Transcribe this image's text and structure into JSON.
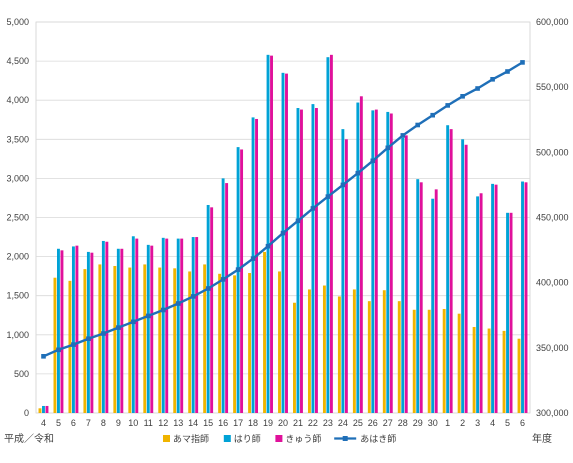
{
  "chart_data": {
    "type": "bar",
    "categories": [
      "4",
      "5",
      "6",
      "7",
      "8",
      "9",
      "10",
      "11",
      "12",
      "13",
      "14",
      "15",
      "16",
      "17",
      "18",
      "19",
      "20",
      "21",
      "22",
      "23",
      "24",
      "25",
      "26",
      "27",
      "28",
      "29",
      "30",
      "1",
      "2",
      "3",
      "4",
      "5",
      "6"
    ],
    "xlabel_left": "平成／令和",
    "xlabel_right": "年度",
    "ylim_left": [
      0,
      5000
    ],
    "yticks_left": [
      0,
      500,
      1000,
      1500,
      2000,
      2500,
      3000,
      3500,
      4000,
      4500,
      5000
    ],
    "ylim_right": [
      300000,
      600000
    ],
    "yticks_right": [
      300000,
      350000,
      400000,
      450000,
      500000,
      550000,
      600000
    ],
    "grid": true,
    "legend_position": "bottom",
    "series": [
      {
        "name": "あマ指師",
        "type": "bar",
        "axis": "left",
        "color": "#F0B400",
        "values": [
          60,
          1730,
          1690,
          1840,
          1900,
          1880,
          1860,
          1900,
          1860,
          1850,
          1810,
          1900,
          1780,
          1760,
          1790,
          2060,
          1810,
          1410,
          1580,
          1630,
          1490,
          1580,
          1430,
          1570,
          1430,
          1320,
          1320,
          1330,
          1270,
          1100,
          1080,
          1050,
          950
        ]
      },
      {
        "name": "はり師",
        "type": "bar",
        "axis": "left",
        "color": "#00A2D6",
        "values": [
          90,
          2100,
          2130,
          2060,
          2200,
          2100,
          2260,
          2150,
          2240,
          2230,
          2250,
          2660,
          3000,
          3400,
          3780,
          4580,
          4350,
          3900,
          3950,
          4550,
          3630,
          3970,
          3870,
          3850,
          3520,
          2990,
          2740,
          3680,
          3500,
          2770,
          2930,
          2560,
          2960
        ]
      },
      {
        "name": "きゅう師",
        "type": "bar",
        "axis": "left",
        "color": "#E0119B",
        "values": [
          90,
          2080,
          2140,
          2050,
          2190,
          2100,
          2230,
          2140,
          2230,
          2230,
          2250,
          2630,
          2940,
          3370,
          3760,
          4570,
          4340,
          3880,
          3900,
          4580,
          3500,
          4050,
          3880,
          3830,
          3550,
          2950,
          2860,
          3630,
          3430,
          2810,
          2920,
          2560,
          2950
        ]
      },
      {
        "name": "あはき師",
        "type": "line",
        "axis": "right",
        "color": "#1F6FB8",
        "values": [
          343500,
          348500,
          352500,
          357000,
          361000,
          365500,
          370000,
          374500,
          379000,
          384000,
          389500,
          395500,
          402500,
          410000,
          418500,
          428000,
          438000,
          447500,
          457000,
          466000,
          475000,
          484000,
          493500,
          503500,
          513000,
          521000,
          528500,
          536000,
          543000,
          549000,
          556000,
          562000,
          569000
        ]
      }
    ]
  }
}
